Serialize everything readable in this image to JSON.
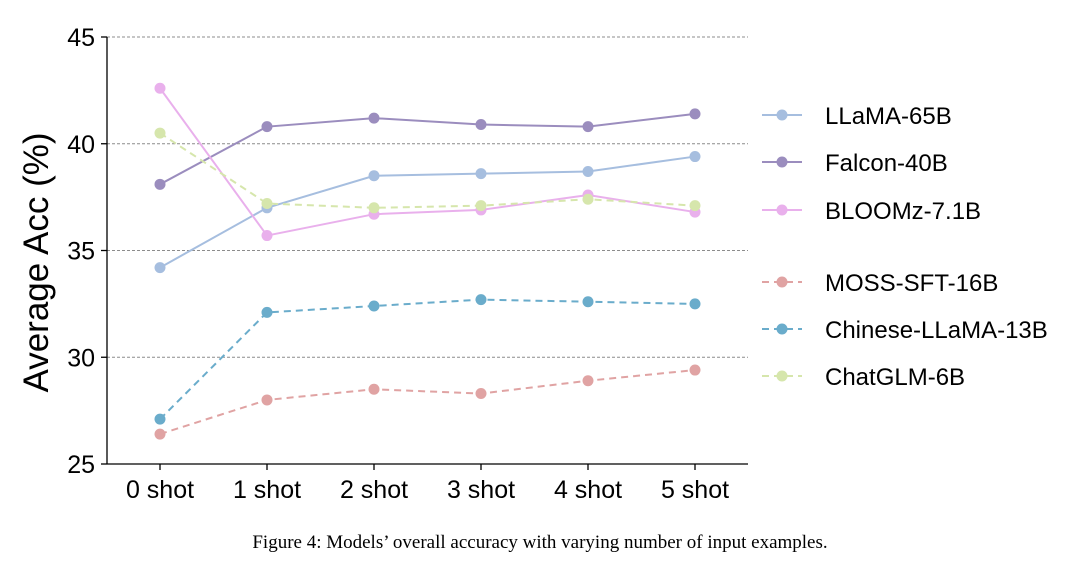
{
  "chart_data": {
    "type": "line",
    "title": "",
    "xlabel": "",
    "ylabel": "Average Acc (%)",
    "categories": [
      "0 shot",
      "1 shot",
      "2 shot",
      "3 shot",
      "4 shot",
      "5 shot"
    ],
    "ylim": [
      25,
      45
    ],
    "yticks": [
      25,
      30,
      35,
      40,
      45
    ],
    "grid": "horizontal dashed",
    "legend_position": "right",
    "series": [
      {
        "name": "LLaMA-65B",
        "style": "solid",
        "color": "#a6bedf",
        "values": [
          34.2,
          37.0,
          38.5,
          38.6,
          38.7,
          39.4
        ]
      },
      {
        "name": "Falcon-40B",
        "style": "solid",
        "color": "#9b8dbe",
        "values": [
          38.1,
          40.8,
          41.2,
          40.9,
          40.8,
          41.4
        ]
      },
      {
        "name": "BLOOMz-7.1B",
        "style": "solid",
        "color": "#e9b0ec",
        "values": [
          42.6,
          35.7,
          36.7,
          36.9,
          37.6,
          36.8
        ]
      },
      {
        "name": "MOSS-SFT-16B",
        "style": "dashed",
        "color": "#e0a3a3",
        "values": [
          26.4,
          28.0,
          28.5,
          28.3,
          28.9,
          29.4
        ]
      },
      {
        "name": "Chinese-LLaMA-13B",
        "style": "dashed",
        "color": "#6aaccb",
        "values": [
          27.1,
          32.1,
          32.4,
          32.7,
          32.6,
          32.5
        ]
      },
      {
        "name": "ChatGLM-6B",
        "style": "dashed",
        "color": "#d6e6ac",
        "values": [
          40.5,
          37.2,
          37.0,
          37.1,
          37.4,
          37.1
        ]
      }
    ]
  },
  "caption": "Figure 4: Models’ overall accuracy with varying number of input examples."
}
